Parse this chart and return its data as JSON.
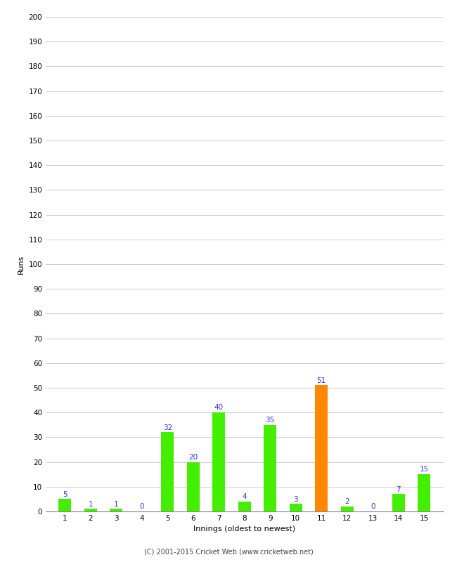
{
  "innings": [
    1,
    2,
    3,
    4,
    5,
    6,
    7,
    8,
    9,
    10,
    11,
    12,
    13,
    14,
    15
  ],
  "runs": [
    5,
    1,
    1,
    0,
    32,
    20,
    40,
    4,
    35,
    3,
    51,
    2,
    0,
    7,
    15
  ],
  "bar_colors": [
    "#44ee00",
    "#44ee00",
    "#44ee00",
    "#44ee00",
    "#44ee00",
    "#44ee00",
    "#44ee00",
    "#44ee00",
    "#44ee00",
    "#44ee00",
    "#ff8800",
    "#44ee00",
    "#44ee00",
    "#44ee00",
    "#44ee00"
  ],
  "xlabel": "Innings (oldest to newest)",
  "ylabel": "Runs",
  "ylim": [
    0,
    200
  ],
  "yticks": [
    0,
    10,
    20,
    30,
    40,
    50,
    60,
    70,
    80,
    90,
    100,
    110,
    120,
    130,
    140,
    150,
    160,
    170,
    180,
    190,
    200
  ],
  "label_color": "#3333cc",
  "label_fontsize": 7.5,
  "axis_fontsize": 8,
  "tick_fontsize": 7.5,
  "footer_text": "(C) 2001-2015 Cricket Web (www.cricketweb.net)",
  "background_color": "#ffffff",
  "grid_color": "#cccccc",
  "bar_width": 0.5
}
